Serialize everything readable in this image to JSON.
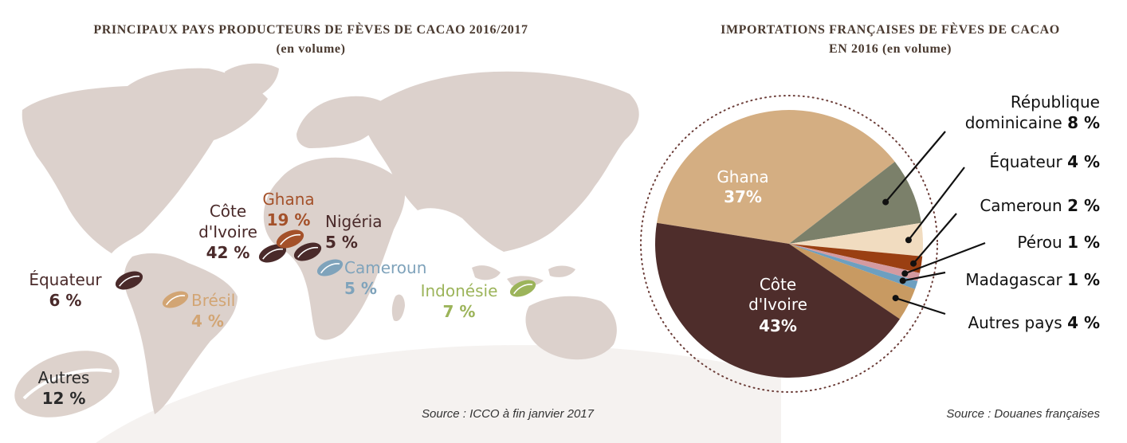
{
  "map_chart": {
    "title_line1": "PRINCIPAUX PAYS PRODUCTEURS DE FÈVES DE CACAO 2016/2017",
    "title_line2": "(en volume)",
    "source": "Source : ICCO à fin janvier 2017",
    "colors": {
      "land": "#dcd1cc",
      "cote_divoire": "#4a2a2a",
      "ghana": "#a4512a",
      "nigeria": "#4a2a2a",
      "cameroun": "#7fa3bb",
      "bresil": "#d2a574",
      "equateur": "#4a2a2a",
      "indonesie": "#9cb45a",
      "autres": "#2a2a2a"
    }
  },
  "chart_data": [
    {
      "type": "bar",
      "title": "PRINCIPAUX PAYS PRODUCTEURS DE FÈVES DE CACAO 2016/2017",
      "subtitle": "(en volume)",
      "categories": [
        "Côte d'Ivoire",
        "Ghana",
        "Nigéria",
        "Cameroun",
        "Indonésie",
        "Équateur",
        "Brésil",
        "Autres"
      ],
      "values": [
        42,
        19,
        5,
        5,
        7,
        6,
        4,
        12
      ],
      "unit": "%",
      "labels": [
        {
          "name_lines": [
            "Côte",
            "d'Ivoire"
          ],
          "value": "42 %"
        },
        {
          "name_lines": [
            "Ghana"
          ],
          "value": "19 %"
        },
        {
          "name_lines": [
            "Nigéria"
          ],
          "value": "5 %"
        },
        {
          "name_lines": [
            "Cameroun"
          ],
          "value": "5 %"
        },
        {
          "name_lines": [
            "Indonésie"
          ],
          "value": "7 %"
        },
        {
          "name_lines": [
            "Équateur"
          ],
          "value": "6 %"
        },
        {
          "name_lines": [
            "Brésil"
          ],
          "value": "4 %"
        },
        {
          "name_lines": [
            "Autres"
          ],
          "value": "12 %"
        }
      ],
      "source": "Source : ICCO à fin janvier 2017"
    },
    {
      "type": "pie",
      "title": "IMPORTATIONS FRANÇAISES DE FÈVES DE CACAO EN 2016 (en volume)",
      "title_line1": "IMPORTATIONS FRANÇAISES DE FÈVES DE CACAO",
      "title_line2": "EN 2016 (en volume)",
      "categories": [
        "Ghana",
        "République dominicaine",
        "Équateur",
        "Cameroun",
        "Pérou",
        "Madagascar",
        "Autres pays",
        "Côte d'Ivoire"
      ],
      "values": [
        37,
        8,
        4,
        2,
        1,
        1,
        4,
        43
      ],
      "colors": [
        "#d4ae82",
        "#7b806a",
        "#f1dcc0",
        "#9a3f12",
        "#d49aa0",
        "#6d9fc0",
        "#c89a62",
        "#4e2d2b"
      ],
      "inner_labels": [
        {
          "name": "Ghana",
          "value": "37%"
        },
        {
          "name_line1": "Côte",
          "name_line2": "d'Ivoire",
          "value": "43%"
        }
      ],
      "callouts": [
        {
          "line1": "République",
          "line2": "dominicaine",
          "value": "8 %"
        },
        {
          "line1": "Équateur",
          "value": "4 %"
        },
        {
          "line1": "Cameroun",
          "value": "2 %"
        },
        {
          "line1": "Pérou",
          "value": "1 %"
        },
        {
          "line1": "Madagascar",
          "value": "1 %"
        },
        {
          "line1": "Autres pays",
          "value": "4 %"
        }
      ],
      "source": "Source : Douanes françaises"
    }
  ]
}
